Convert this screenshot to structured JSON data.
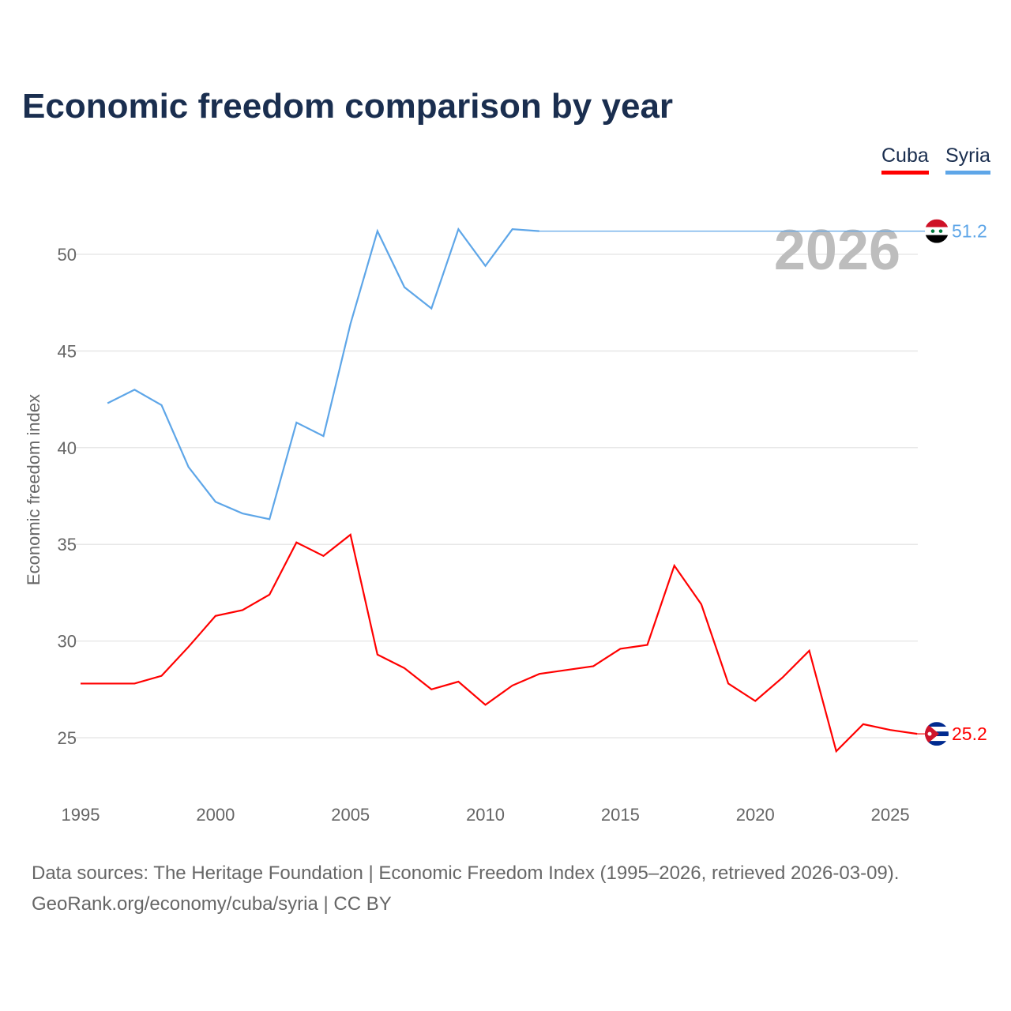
{
  "chart_data": {
    "type": "line",
    "title": "Economic freedom comparison by year",
    "xlabel": "",
    "ylabel": "Economic freedom index",
    "xlim": [
      1995,
      2026
    ],
    "ylim": [
      22.5,
      53
    ],
    "xticks": [
      1995,
      2000,
      2005,
      2010,
      2015,
      2020,
      2025
    ],
    "yticks": [
      25,
      30,
      35,
      40,
      45,
      50
    ],
    "grid": true,
    "legend_position": "top-right",
    "year_label": "2026",
    "series": [
      {
        "name": "Cuba",
        "color": "#ff0000",
        "end_label": "25.2",
        "x": [
          1995,
          1996,
          1997,
          1998,
          1999,
          2000,
          2001,
          2002,
          2003,
          2004,
          2005,
          2006,
          2007,
          2008,
          2009,
          2010,
          2011,
          2012,
          2013,
          2014,
          2015,
          2016,
          2017,
          2018,
          2019,
          2020,
          2021,
          2022,
          2023,
          2024,
          2025,
          2026
        ],
        "values": [
          27.8,
          27.8,
          27.8,
          28.2,
          29.7,
          31.3,
          31.6,
          32.4,
          35.1,
          34.4,
          35.5,
          29.3,
          28.6,
          27.5,
          27.9,
          26.7,
          27.7,
          28.3,
          28.5,
          28.7,
          29.6,
          29.8,
          33.9,
          31.9,
          27.8,
          26.9,
          28.1,
          29.5,
          24.3,
          25.7,
          25.4,
          25.2
        ]
      },
      {
        "name": "Syria",
        "color": "#5ea6e8",
        "end_label": "51.2",
        "x": [
          1996,
          1997,
          1998,
          1999,
          2000,
          2001,
          2002,
          2003,
          2004,
          2005,
          2006,
          2007,
          2008,
          2009,
          2010,
          2011,
          2012
        ],
        "values": [
          42.3,
          43.0,
          42.2,
          39.0,
          37.2,
          36.6,
          36.3,
          41.3,
          40.6,
          46.4,
          51.2,
          48.3,
          47.2,
          51.3,
          49.4,
          51.3,
          51.2
        ],
        "carried_forward_to": 2026
      }
    ]
  },
  "footer": {
    "line1": "Data sources: The Heritage Foundation | Economic Freedom Index (1995–2026, retrieved 2026-03-09).",
    "line2": "GeoRank.org/economy/cuba/syria | CC BY"
  }
}
